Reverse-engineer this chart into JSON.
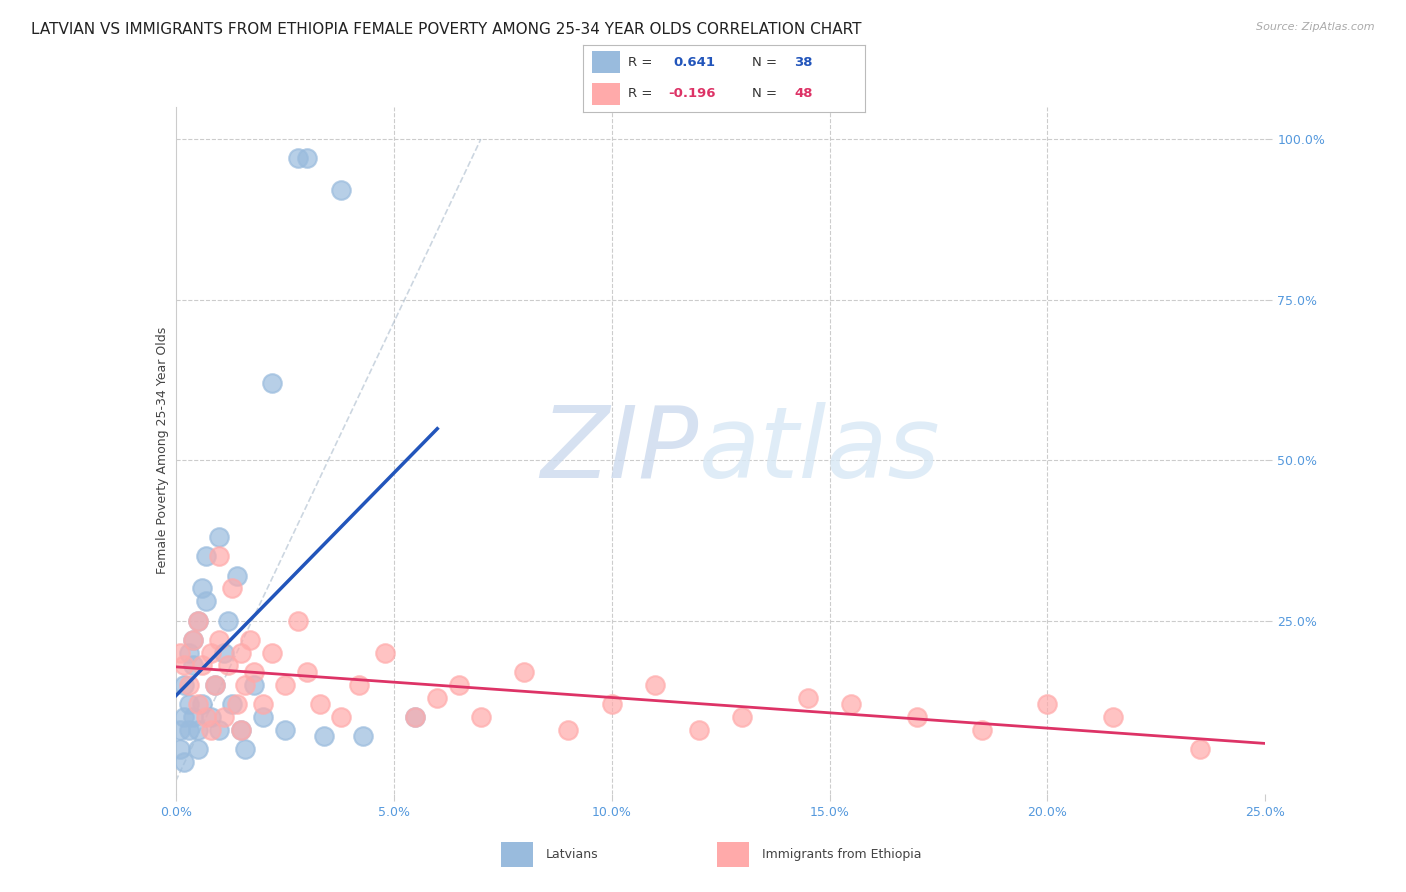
{
  "title": "LATVIAN VS IMMIGRANTS FROM ETHIOPIA FEMALE POVERTY AMONG 25-34 YEAR OLDS CORRELATION CHART",
  "source": "Source: ZipAtlas.com",
  "ylabel": "Female Poverty Among 25-34 Year Olds",
  "xlim": [
    0.0,
    0.25
  ],
  "ylim": [
    -0.02,
    1.05
  ],
  "legend_label1": "Latvians",
  "legend_label2": "Immigrants from Ethiopia",
  "blue_color": "#99BBDD",
  "pink_color": "#FFAAAA",
  "line_blue": "#2255BB",
  "line_pink": "#DD3366",
  "watermark_zip": "ZIP",
  "watermark_atlas": "atlas",
  "background": "#FFFFFF",
  "grid_color": "#CCCCCC",
  "R1": "0.641",
  "N1": "38",
  "R2": "-0.196",
  "N2": "48",
  "latvian_x": [
    0.001,
    0.001,
    0.002,
    0.002,
    0.002,
    0.003,
    0.003,
    0.003,
    0.004,
    0.004,
    0.004,
    0.005,
    0.005,
    0.005,
    0.006,
    0.006,
    0.007,
    0.007,
    0.008,
    0.009,
    0.01,
    0.01,
    0.011,
    0.012,
    0.013,
    0.014,
    0.015,
    0.016,
    0.018,
    0.02,
    0.022,
    0.025,
    0.028,
    0.03,
    0.034,
    0.038,
    0.043,
    0.055
  ],
  "latvian_y": [
    0.05,
    0.08,
    0.03,
    0.1,
    0.15,
    0.08,
    0.12,
    0.2,
    0.1,
    0.18,
    0.22,
    0.25,
    0.05,
    0.08,
    0.3,
    0.12,
    0.28,
    0.35,
    0.1,
    0.15,
    0.38,
    0.08,
    0.2,
    0.25,
    0.12,
    0.32,
    0.08,
    0.05,
    0.15,
    0.1,
    0.62,
    0.08,
    0.97,
    0.97,
    0.07,
    0.92,
    0.07,
    0.1
  ],
  "ethiopia_x": [
    0.001,
    0.002,
    0.003,
    0.004,
    0.005,
    0.005,
    0.006,
    0.007,
    0.008,
    0.008,
    0.009,
    0.01,
    0.01,
    0.011,
    0.012,
    0.013,
    0.014,
    0.015,
    0.015,
    0.016,
    0.017,
    0.018,
    0.02,
    0.022,
    0.025,
    0.028,
    0.03,
    0.033,
    0.038,
    0.042,
    0.048,
    0.055,
    0.06,
    0.065,
    0.07,
    0.08,
    0.09,
    0.1,
    0.11,
    0.12,
    0.13,
    0.145,
    0.155,
    0.17,
    0.185,
    0.2,
    0.215,
    0.235
  ],
  "ethiopia_y": [
    0.2,
    0.18,
    0.15,
    0.22,
    0.12,
    0.25,
    0.18,
    0.1,
    0.2,
    0.08,
    0.15,
    0.22,
    0.35,
    0.1,
    0.18,
    0.3,
    0.12,
    0.2,
    0.08,
    0.15,
    0.22,
    0.17,
    0.12,
    0.2,
    0.15,
    0.25,
    0.17,
    0.12,
    0.1,
    0.15,
    0.2,
    0.1,
    0.13,
    0.15,
    0.1,
    0.17,
    0.08,
    0.12,
    0.15,
    0.08,
    0.1,
    0.13,
    0.12,
    0.1,
    0.08,
    0.12,
    0.1,
    0.05
  ],
  "title_fontsize": 11,
  "axis_fontsize": 9,
  "tick_fontsize": 9,
  "tick_color": "#5599DD"
}
